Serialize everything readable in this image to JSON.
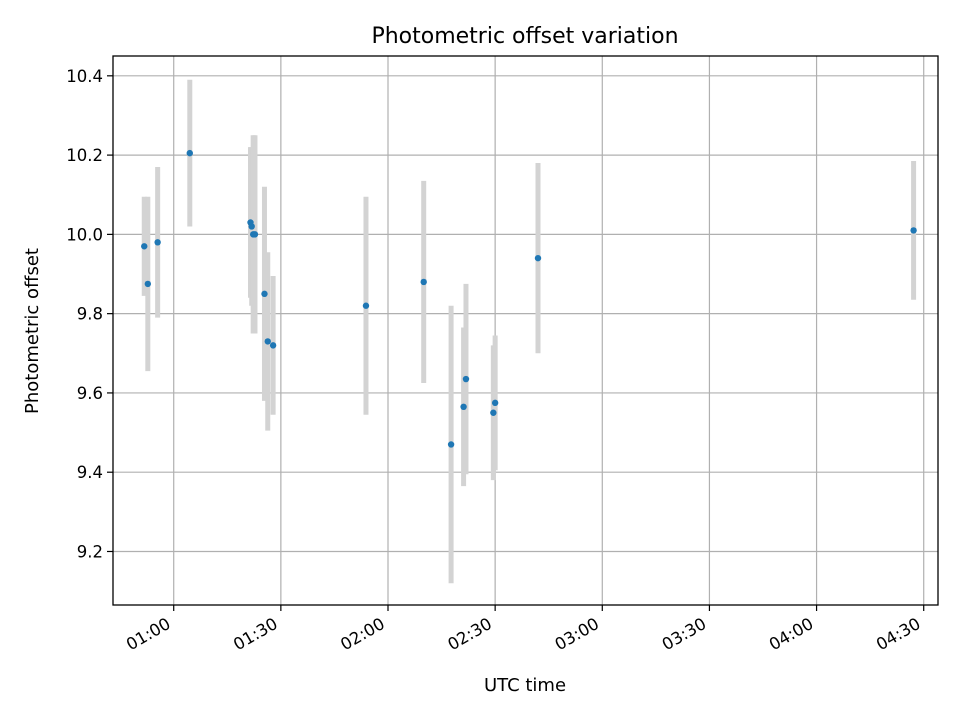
{
  "chart_data": {
    "type": "scatter",
    "title": "Photometric offset variation",
    "xlabel": "UTC time",
    "ylabel": "Photometric offset",
    "x_axis": "time",
    "xlim": [
      "00:43",
      "04:34"
    ],
    "ylim": [
      9.065,
      10.45
    ],
    "grid": true,
    "legend": "none",
    "x_ticks": [
      "01:00",
      "01:30",
      "02:00",
      "02:30",
      "03:00",
      "03:30",
      "04:00",
      "04:30"
    ],
    "y_ticks": [
      9.2,
      9.4,
      9.6,
      9.8,
      10.0,
      10.2,
      10.4
    ],
    "colors": {
      "point": "#1f77b4",
      "errorbar": "#d3d3d3",
      "grid": "#b0b0b0"
    },
    "points": [
      {
        "x": "00:51:45",
        "y": 9.97,
        "err": 0.125
      },
      {
        "x": "00:52:45",
        "y": 9.875,
        "err": 0.22
      },
      {
        "x": "00:55:30",
        "y": 9.98,
        "err": 0.19
      },
      {
        "x": "01:04:30",
        "y": 10.205,
        "err": 0.185
      },
      {
        "x": "01:21:30",
        "y": 10.03,
        "err": 0.19
      },
      {
        "x": "01:21:50",
        "y": 10.02,
        "err": 0.2
      },
      {
        "x": "01:22:15",
        "y": 10.0,
        "err": 0.25
      },
      {
        "x": "01:22:45",
        "y": 10.0,
        "err": 0.25
      },
      {
        "x": "01:25:25",
        "y": 9.85,
        "err": 0.27
      },
      {
        "x": "01:26:20",
        "y": 9.73,
        "err": 0.225
      },
      {
        "x": "01:27:50",
        "y": 9.72,
        "err": 0.175
      },
      {
        "x": "01:53:50",
        "y": 9.82,
        "err": 0.275
      },
      {
        "x": "02:10:00",
        "y": 9.88,
        "err": 0.255
      },
      {
        "x": "02:17:40",
        "y": 9.47,
        "err": 0.35
      },
      {
        "x": "02:21:10",
        "y": 9.565,
        "err": 0.2
      },
      {
        "x": "02:21:50",
        "y": 9.635,
        "err": 0.24
      },
      {
        "x": "02:29:30",
        "y": 9.55,
        "err": 0.17
      },
      {
        "x": "02:30:00",
        "y": 9.575,
        "err": 0.17
      },
      {
        "x": "02:42:00",
        "y": 9.94,
        "err": 0.24
      },
      {
        "x": "04:27:10",
        "y": 10.01,
        "err": 0.175
      }
    ]
  }
}
